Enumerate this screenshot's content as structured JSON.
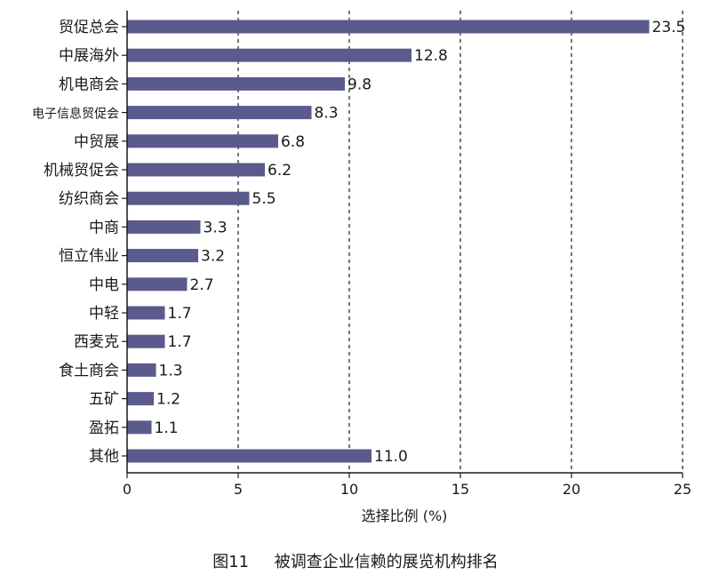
{
  "chart_data": {
    "type": "bar",
    "orientation": "horizontal",
    "categories": [
      "贸促总会",
      "中展海外",
      "机电商会",
      "电子信息贸促会",
      "中贸展",
      "机械贸促会",
      "纺织商会",
      "中商",
      "恒立伟业",
      "中电",
      "中轻",
      "西麦克",
      "食土商会",
      "五矿",
      "盈拓",
      "其他"
    ],
    "values": [
      23.5,
      12.8,
      9.8,
      8.3,
      6.8,
      6.2,
      5.5,
      3.3,
      3.2,
      2.7,
      1.7,
      1.7,
      1.3,
      1.2,
      1.1,
      11.0
    ],
    "value_labels": [
      "23.5",
      "12.8",
      "9.8",
      "8.3",
      "6.8",
      "6.2",
      "5.5",
      "3.3",
      "3.2",
      "2.7",
      "1.7",
      "1.7",
      "1.3",
      "1.2",
      "1.1",
      "11.0"
    ],
    "xlabel": "选择比例 (%)",
    "xlim": [
      0,
      25
    ],
    "xticks": [
      "0",
      "5",
      "10",
      "15",
      "20",
      "25"
    ],
    "grid": "vertical dashed",
    "bar_color": "#5a5a8c"
  },
  "caption": {
    "figure_no": "图11",
    "text": "被调查企业信赖的展览机构排名"
  }
}
